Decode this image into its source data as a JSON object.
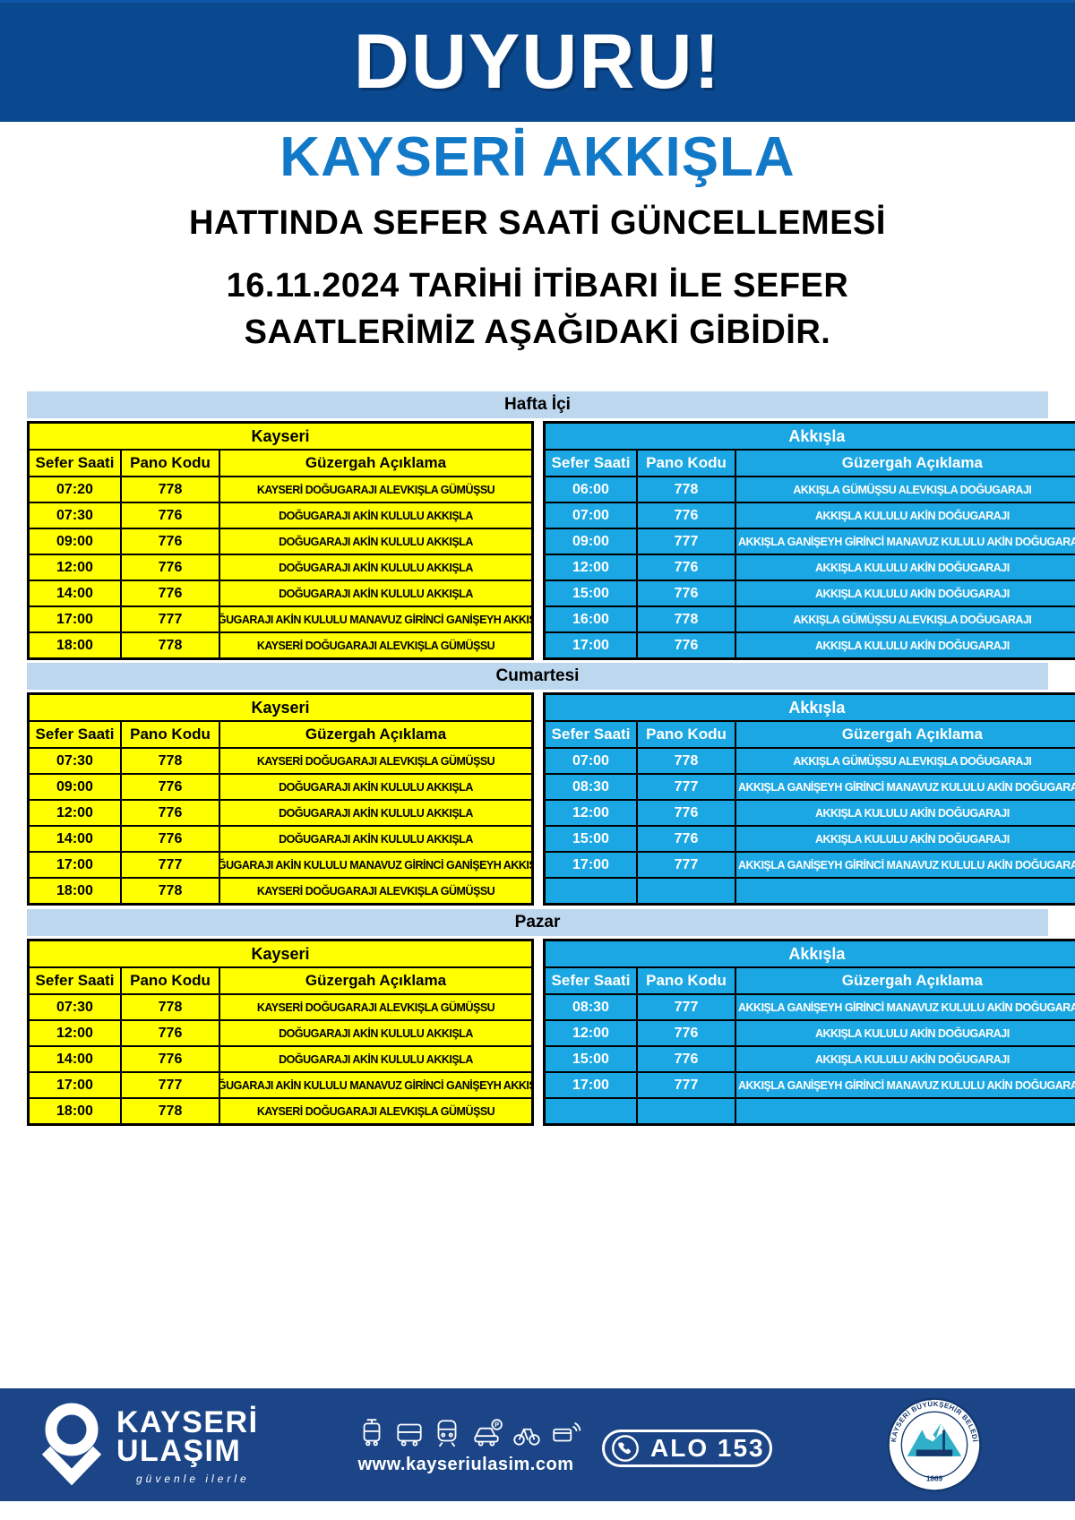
{
  "banner": {
    "title": "DUYURU!"
  },
  "heading": {
    "line_name": "KAYSERİ AKKIŞLA",
    "line_update": "HATTINDA SEFER SAATİ GÜNCELLEMESİ",
    "line_date": "16.11.2024 TARİHİ İTİBARI İLE SEFER",
    "line_rest": "SAATLERİMİZ AŞAĞIDAKİ GİBİDİR."
  },
  "table_headers": {
    "left_group": "Kayseri",
    "right_group": "Akkışla",
    "col_time": "Sefer Saati",
    "col_code": "Pano Kodu",
    "col_route": "Güzergah Açıklama"
  },
  "schedules": [
    {
      "day": "Hafta İçi",
      "kayseri": [
        {
          "time": "07:20",
          "code": "778",
          "route": "KAYSERİ DOĞUGARAJI ALEVKIŞLA GÜMÜŞSU"
        },
        {
          "time": "07:30",
          "code": "776",
          "route": "DOĞUGARAJI AKİN KULULU AKKIŞLA"
        },
        {
          "time": "09:00",
          "code": "776",
          "route": "DOĞUGARAJI AKİN KULULU AKKIŞLA"
        },
        {
          "time": "12:00",
          "code": "776",
          "route": "DOĞUGARAJI AKİN KULULU AKKIŞLA"
        },
        {
          "time": "14:00",
          "code": "776",
          "route": "DOĞUGARAJI AKİN KULULU AKKIŞLA"
        },
        {
          "time": "17:00",
          "code": "777",
          "route": "DOĞUGARAJI AKİN KULULU MANAVUZ GİRİNCİ GANİŞEYH AKKIŞLA"
        },
        {
          "time": "18:00",
          "code": "778",
          "route": "KAYSERİ DOĞUGARAJI ALEVKIŞLA GÜMÜŞSU"
        }
      ],
      "akkisla": [
        {
          "time": "06:00",
          "code": "778",
          "route": "AKKIŞLA GÜMÜŞSU ALEVKIŞLA DOĞUGARAJI"
        },
        {
          "time": "07:00",
          "code": "776",
          "route": "AKKIŞLA KULULU AKİN DOĞUGARAJI"
        },
        {
          "time": "09:00",
          "code": "777",
          "route": "AKKIŞLA GANİŞEYH GİRİNCİ MANAVUZ KULULU AKİN DOĞUGARAJI"
        },
        {
          "time": "12:00",
          "code": "776",
          "route": "AKKIŞLA KULULU AKİN DOĞUGARAJI"
        },
        {
          "time": "15:00",
          "code": "776",
          "route": "AKKIŞLA KULULU AKİN DOĞUGARAJI"
        },
        {
          "time": "16:00",
          "code": "778",
          "route": "AKKIŞLA GÜMÜŞSU ALEVKIŞLA DOĞUGARAJI"
        },
        {
          "time": "17:00",
          "code": "776",
          "route": "AKKIŞLA KULULU AKİN DOĞUGARAJI"
        }
      ]
    },
    {
      "day": "Cumartesi",
      "kayseri": [
        {
          "time": "07:30",
          "code": "778",
          "route": "KAYSERİ DOĞUGARAJI ALEVKIŞLA GÜMÜŞSU"
        },
        {
          "time": "09:00",
          "code": "776",
          "route": "DOĞUGARAJI AKİN KULULU AKKIŞLA"
        },
        {
          "time": "12:00",
          "code": "776",
          "route": "DOĞUGARAJI AKİN KULULU AKKIŞLA"
        },
        {
          "time": "14:00",
          "code": "776",
          "route": "DOĞUGARAJI AKİN KULULU AKKIŞLA"
        },
        {
          "time": "17:00",
          "code": "777",
          "route": "DOĞUGARAJI AKİN KULULU MANAVUZ GİRİNCİ GANİŞEYH AKKIŞLA"
        },
        {
          "time": "18:00",
          "code": "778",
          "route": "KAYSERİ DOĞUGARAJI ALEVKIŞLA GÜMÜŞSU"
        }
      ],
      "akkisla": [
        {
          "time": "07:00",
          "code": "778",
          "route": "AKKIŞLA GÜMÜŞSU ALEVKIŞLA DOĞUGARAJI"
        },
        {
          "time": "08:30",
          "code": "777",
          "route": "AKKIŞLA GANİŞEYH GİRİNCİ MANAVUZ KULULU AKİN DOĞUGARAJI"
        },
        {
          "time": "12:00",
          "code": "776",
          "route": "AKKIŞLA KULULU AKİN DOĞUGARAJI"
        },
        {
          "time": "15:00",
          "code": "776",
          "route": "AKKIŞLA KULULU AKİN DOĞUGARAJI"
        },
        {
          "time": "17:00",
          "code": "777",
          "route": "AKKIŞLA GANİŞEYH GİRİNCİ MANAVUZ KULULU AKİN DOĞUGARAJI"
        },
        {
          "time": "",
          "code": "",
          "route": ""
        }
      ]
    },
    {
      "day": "Pazar",
      "kayseri": [
        {
          "time": "07:30",
          "code": "778",
          "route": "KAYSERİ DOĞUGARAJI ALEVKIŞLA GÜMÜŞSU"
        },
        {
          "time": "12:00",
          "code": "776",
          "route": "DOĞUGARAJI AKİN KULULU AKKIŞLA"
        },
        {
          "time": "14:00",
          "code": "776",
          "route": "DOĞUGARAJI AKİN KULULU AKKIŞLA"
        },
        {
          "time": "17:00",
          "code": "777",
          "route": "DOĞUGARAJI AKİN KULULU MANAVUZ GİRİNCİ GANİŞEYH AKKIŞLA"
        },
        {
          "time": "18:00",
          "code": "778",
          "route": "KAYSERİ DOĞUGARAJI ALEVKIŞLA GÜMÜŞSU"
        }
      ],
      "akkisla": [
        {
          "time": "08:30",
          "code": "777",
          "route": "AKKIŞLA GANİŞEYH GİRİNCİ MANAVUZ KULULU AKİN DOĞUGARAJI"
        },
        {
          "time": "12:00",
          "code": "776",
          "route": "AKKIŞLA KULULU AKİN DOĞUGARAJI"
        },
        {
          "time": "15:00",
          "code": "776",
          "route": "AKKIŞLA KULULU AKİN DOĞUGARAJI"
        },
        {
          "time": "17:00",
          "code": "777",
          "route": "AKKIŞLA GANİŞEYH GİRİNCİ MANAVUZ KULULU AKİN DOĞUGARAJI"
        },
        {
          "time": "",
          "code": "",
          "route": ""
        }
      ]
    }
  ],
  "footer": {
    "brand_line1": "KAYSERİ",
    "brand_line2": "ULAŞIM",
    "tagline": "güvenle ilerle",
    "website": "www.kayseriulasim.com",
    "phone_label": "ALO 153",
    "seal_text": "KAYSERİ BÜYÜKŞEHİR BELEDİYESİ",
    "seal_year": "1869",
    "icon_names": [
      "tram-icon",
      "bus-icon",
      "metro-icon",
      "car-parking-icon",
      "bicycle-icon",
      "contactless-card-icon"
    ]
  },
  "colors": {
    "banner_blue": "#0A4890",
    "title_blue": "#1278C8",
    "day_band_blue": "#BDD7EE",
    "kayseri_yellow": "#FFFF00",
    "akkisla_cyan": "#1BA7E3",
    "footer_navy": "#1B4587",
    "seal_teal": "#2FAFC8"
  }
}
